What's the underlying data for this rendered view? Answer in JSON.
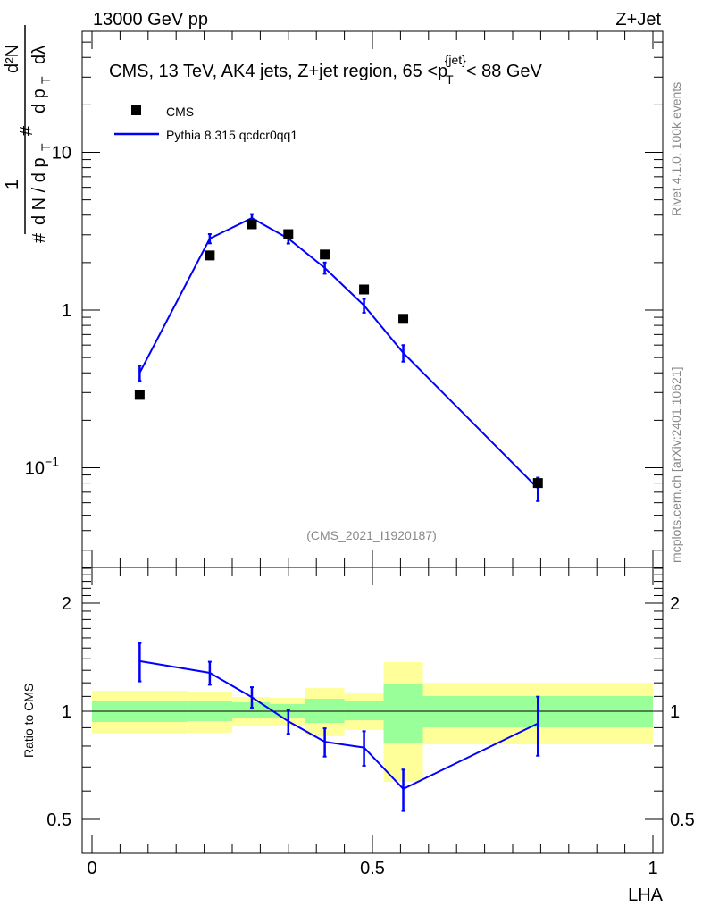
{
  "header": {
    "left": "13000 GeV pp",
    "right": "Z+Jet"
  },
  "side": {
    "rivet": "Rivet 4.1.0,  100k events",
    "mcplots": "mcplots.cern.ch [arXiv:2401.10621]"
  },
  "chart_data": [
    {
      "type": "scatter",
      "title": "CMS, 13 TeV, AK4 jets, Z+jet region, 65 <p_T^{jet}< 88 GeV",
      "title_parts": {
        "main": "CMS, 13 TeV, AK4 jets, Z+jet region, 65 <p",
        "sub": "T",
        "sup": "{jet}",
        "tail": "< 88 GeV"
      },
      "ylabel": "1/(dN/dpT) d²N/(dpT dλ)",
      "ylabel_parts": {
        "one": "1",
        "dN": "d N / d p",
        "T": "T",
        "hash": "#",
        "d2N": "d²N",
        "dpdl": "d p",
        "lambda": "dλ"
      },
      "xlabel": "LHA",
      "yscale": "log",
      "ylim": [
        0.023,
        59
      ],
      "xlim": [
        -0.017,
        1.017
      ],
      "yticks": [
        {
          "v": 10,
          "label": "10"
        },
        {
          "v": 1,
          "label": "1"
        },
        {
          "v": 0.1,
          "label": "10",
          "exp": "−1"
        }
      ],
      "legend": {
        "placement": "top-left",
        "entries": [
          "CMS",
          "Pythia 8.315 qcdcr0qq1"
        ]
      },
      "annotation": "(CMS_2021_I1920187)",
      "x": [
        0.085,
        0.21,
        0.285,
        0.35,
        0.415,
        0.485,
        0.555,
        0.795
      ],
      "series": [
        {
          "name": "CMS",
          "style": "markers",
          "color": "#000000",
          "values": [
            0.29,
            2.22,
            3.5,
            3.03,
            2.25,
            1.35,
            0.88,
            0.08
          ]
        },
        {
          "name": "Pythia 8.315 qcdcr0qq1",
          "style": "line",
          "color": "#0000ff",
          "values": [
            0.4,
            2.84,
            3.83,
            2.84,
            1.85,
            1.07,
            0.535,
            0.074
          ],
          "rel_err": [
            0.111,
            0.067,
            0.06,
            0.07,
            0.082,
            0.1,
            0.12,
            0.17
          ]
        }
      ]
    },
    {
      "type": "line",
      "ylabel": "Ratio to CMS",
      "xlabel": "LHA",
      "yscale": "log",
      "ylim": [
        0.4,
        2.51
      ],
      "xlim": [
        -0.017,
        1.017
      ],
      "yticks": [
        {
          "v": 2,
          "label": "2"
        },
        {
          "v": 1,
          "label": "1"
        },
        {
          "v": 0.5,
          "label": "0.5"
        }
      ],
      "xticks": [
        {
          "v": 0,
          "label": "0"
        },
        {
          "v": 0.5,
          "label": "0.5"
        },
        {
          "v": 1,
          "label": "1"
        }
      ],
      "bin_edges": [
        0,
        0.17,
        0.25,
        0.317,
        0.38,
        0.45,
        0.52,
        0.59,
        1.0
      ],
      "band_yellow": [
        [
          0.867,
          1.141
        ],
        [
          0.872,
          1.134
        ],
        [
          0.907,
          1.096
        ],
        [
          0.912,
          1.09
        ],
        [
          0.852,
          1.16
        ],
        [
          0.887,
          1.121
        ],
        [
          0.636,
          1.37
        ],
        [
          0.809,
          1.201
        ]
      ],
      "band_green": [
        [
          0.934,
          1.071
        ],
        [
          0.939,
          1.071
        ],
        [
          0.955,
          1.059
        ],
        [
          0.955,
          1.047
        ],
        [
          0.928,
          1.083
        ],
        [
          0.944,
          1.065
        ],
        [
          0.818,
          1.188
        ],
        [
          0.902,
          1.102
        ]
      ],
      "colors": {
        "yellow": "#ffff99",
        "green": "#99ff99",
        "mc": "#0000ff"
      }
    }
  ]
}
